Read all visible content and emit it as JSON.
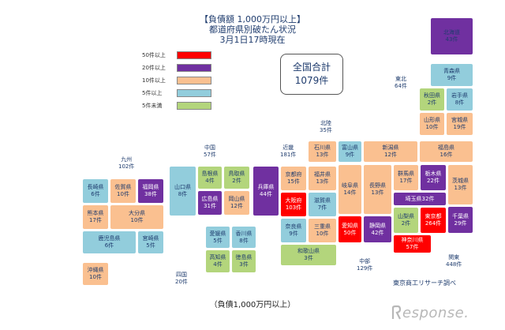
{
  "header": {
    "line1": "【負債額 1,000万円以上】",
    "line2": "都道府県別破たん状況",
    "line3": "3月1日17時現在"
  },
  "total": {
    "label": "全国合計",
    "value": "1079件"
  },
  "legend": [
    {
      "label": "50件以上",
      "color": "#ff0000"
    },
    {
      "label": "20件以上",
      "color": "#7030a0"
    },
    {
      "label": "10件以上",
      "color": "#fac090"
    },
    {
      "label": "5件以上",
      "color": "#92cddc"
    },
    {
      "label": "5件未満",
      "color": "#b3d57c"
    }
  ],
  "prefectures": [
    {
      "name": "北海道",
      "count": "43件",
      "color": "#7030a0"
    },
    {
      "name": "青森県",
      "count": "9件",
      "color": "#92cddc"
    },
    {
      "name": "秋田県",
      "count": "2件",
      "color": "#b3d57c"
    },
    {
      "name": "岩手県",
      "count": "8件",
      "color": "#92cddc"
    },
    {
      "name": "山形県",
      "count": "10件",
      "color": "#fac090"
    },
    {
      "name": "宮城県",
      "count": "19件",
      "color": "#fac090"
    },
    {
      "name": "石川県",
      "count": "13件",
      "color": "#fac090"
    },
    {
      "name": "富山県",
      "count": "9件",
      "color": "#92cddc"
    },
    {
      "name": "新潟県",
      "count": "12件",
      "color": "#fac090"
    },
    {
      "name": "福島県",
      "count": "16件",
      "color": "#fac090"
    },
    {
      "name": "島根県",
      "count": "4件",
      "color": "#b3d57c"
    },
    {
      "name": "鳥取県",
      "count": "2件",
      "color": "#b3d57c"
    },
    {
      "name": "京都府",
      "count": "15件",
      "color": "#fac090"
    },
    {
      "name": "福井県",
      "count": "13件",
      "color": "#fac090"
    },
    {
      "name": "群馬県",
      "count": "17件",
      "color": "#fac090"
    },
    {
      "name": "栃木県",
      "count": "22件",
      "color": "#7030a0"
    },
    {
      "name": "茨城県",
      "count": "13件",
      "color": "#fac090"
    },
    {
      "name": "長崎県",
      "count": "6件",
      "color": "#92cddc"
    },
    {
      "name": "佐賀県",
      "count": "10件",
      "color": "#fac090"
    },
    {
      "name": "福岡県",
      "count": "38件",
      "color": "#7030a0"
    },
    {
      "name": "山口県",
      "count": "8件",
      "color": "#92cddc"
    },
    {
      "name": "広島県",
      "count": "31件",
      "color": "#7030a0"
    },
    {
      "name": "岡山県",
      "count": "12件",
      "color": "#fac090"
    },
    {
      "name": "兵庫県",
      "count": "44件",
      "color": "#7030a0"
    },
    {
      "name": "大阪府",
      "count": "103件",
      "color": "#ff0000"
    },
    {
      "name": "滋賀県",
      "count": "7件",
      "color": "#92cddc"
    },
    {
      "name": "岐阜県",
      "count": "14件",
      "color": "#fac090"
    },
    {
      "name": "長野県",
      "count": "13件",
      "color": "#fac090"
    },
    {
      "name": "山梨県",
      "count": "2件",
      "color": "#b3d57c"
    },
    {
      "name": "埼玉県",
      "count": "32件",
      "color": "#7030a0",
      "inline": true
    },
    {
      "name": "東京都",
      "count": "264件",
      "color": "#ff0000"
    },
    {
      "name": "千葉県",
      "count": "29件",
      "color": "#7030a0"
    },
    {
      "name": "熊本県",
      "count": "17件",
      "color": "#fac090"
    },
    {
      "name": "大分県",
      "count": "10件",
      "color": "#fac090"
    },
    {
      "name": "奈良県",
      "count": "9件",
      "color": "#92cddc"
    },
    {
      "name": "三重県",
      "count": "10件",
      "color": "#fac090"
    },
    {
      "name": "愛知県",
      "count": "50件",
      "color": "#ff0000"
    },
    {
      "name": "静岡県",
      "count": "42件",
      "color": "#7030a0"
    },
    {
      "name": "神奈川県",
      "count": "57件",
      "color": "#ff0000"
    },
    {
      "name": "鹿児島県",
      "count": "6件",
      "color": "#92cddc"
    },
    {
      "name": "宮崎県",
      "count": "5件",
      "color": "#92cddc"
    },
    {
      "name": "愛媛県",
      "count": "5件",
      "color": "#92cddc"
    },
    {
      "name": "香川県",
      "count": "8件",
      "color": "#92cddc"
    },
    {
      "name": "和歌山県",
      "count": "3件",
      "color": "#b3d57c"
    },
    {
      "name": "高知県",
      "count": "4件",
      "color": "#b3d57c"
    },
    {
      "name": "徳島県",
      "count": "3件",
      "color": "#b3d57c"
    },
    {
      "name": "沖縄県",
      "count": "10件",
      "color": "#fac090"
    }
  ],
  "regions": [
    {
      "name": "東北",
      "count": "64件"
    },
    {
      "name": "北陸",
      "count": "35件"
    },
    {
      "name": "中国",
      "count": "57件"
    },
    {
      "name": "近畿",
      "count": "181件"
    },
    {
      "name": "九州",
      "count": "102件"
    },
    {
      "name": "四国",
      "count": "20件"
    },
    {
      "name": "中部",
      "count": "129件"
    },
    {
      "name": "関東",
      "count": "448件"
    }
  ],
  "credit": "東京商工リサーチ調べ",
  "caption": "（負債1,000万円以上）",
  "watermark": "esponse."
}
